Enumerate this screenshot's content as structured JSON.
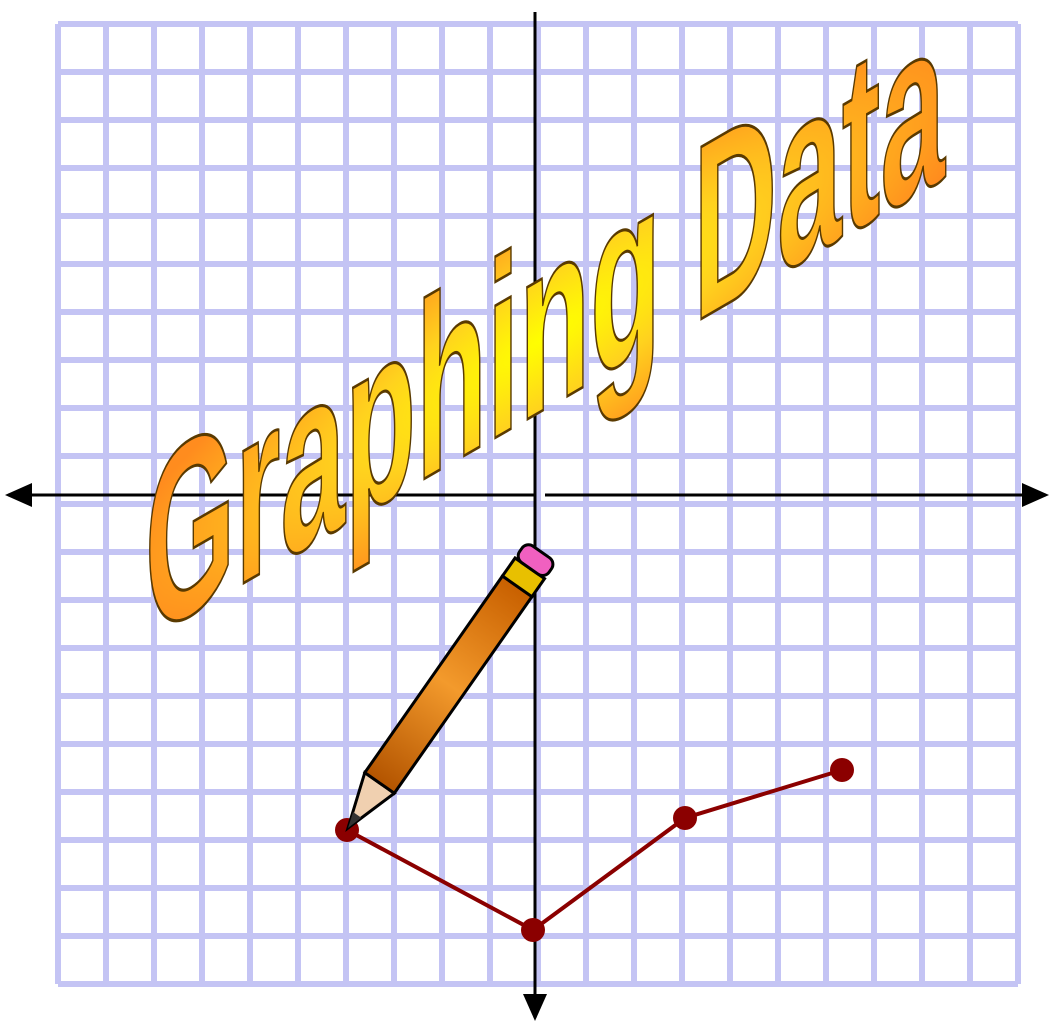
{
  "title": "Graphing Data"
}
